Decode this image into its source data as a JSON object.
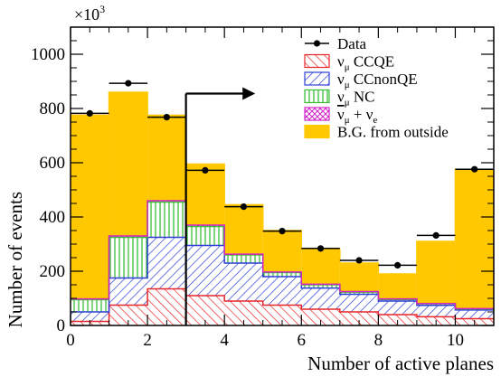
{
  "chart_data": {
    "type": "bar",
    "stacked": true,
    "x_bin_edges": [
      0,
      1,
      2,
      3,
      4,
      5,
      6,
      7,
      8,
      9,
      10,
      11
    ],
    "xlabel": "Number of active planes",
    "ylabel": "Number of events",
    "y_multiplier": "×10",
    "y_multiplier_exp": "3",
    "xlim": [
      0,
      11
    ],
    "ylim": [
      0,
      1100
    ],
    "x_ticks": [
      0,
      2,
      4,
      6,
      8,
      10
    ],
    "y_ticks": [
      0,
      200,
      400,
      600,
      800,
      1000
    ],
    "series": [
      {
        "key": "ccqe",
        "name": "CCQE",
        "color": "#e8262a",
        "pattern": "diagonal-hatch",
        "values": [
          15,
          75,
          135,
          110,
          90,
          75,
          60,
          50,
          40,
          32,
          25
        ]
      },
      {
        "key": "ccnonqe",
        "name": "CCnonQE",
        "color": "#2b3fd6",
        "pattern": "diagonal-hatch",
        "values": [
          35,
          100,
          190,
          185,
          140,
          105,
          78,
          65,
          50,
          42,
          32
        ]
      },
      {
        "key": "nc",
        "name": "NC",
        "color": "#3cbf35",
        "pattern": "vertical-lines",
        "values": [
          45,
          150,
          130,
          70,
          30,
          15,
          12,
          8,
          6,
          6,
          4
        ]
      },
      {
        "key": "anti",
        "name": "+",
        "color": "#d321c8",
        "pattern": "cross-hatch",
        "values": [
          3,
          5,
          5,
          5,
          3,
          2,
          2,
          2,
          2,
          1,
          1
        ]
      },
      {
        "key": "bg",
        "name": "B.G. from outside",
        "color": "#ffc800",
        "pattern": "solid",
        "values": [
          677,
          530,
          315,
          225,
          182,
          153,
          128,
          105,
          92,
          229,
          514
        ]
      }
    ],
    "data_points": {
      "name": "Data",
      "x": [
        0.5,
        1.5,
        2.5,
        3.5,
        4.5,
        5.5,
        6.5,
        7.5,
        8.5,
        9.5,
        10.5
      ],
      "y": [
        782,
        893,
        768,
        572,
        438,
        348,
        284,
        240,
        222,
        332,
        576
      ]
    },
    "cut": {
      "x": 3,
      "y_top": 855,
      "arrow_to_x": 4.8
    },
    "legend": {
      "placement": "top-right",
      "entries": [
        {
          "key": "data",
          "label": "Data"
        },
        {
          "key": "ccqe",
          "main": "ν",
          "sub": "μ",
          "label": "CCQE"
        },
        {
          "key": "ccnonqe",
          "main": "ν",
          "sub": "μ",
          "label": "CCnonQE"
        },
        {
          "key": "nc",
          "main": "ν",
          "sub": "μ",
          "label": "NC"
        },
        {
          "key": "anti",
          "main": "ν",
          "sub": "μ",
          "label": "+",
          "extra_main": "ν",
          "extra_sub": "e"
        },
        {
          "key": "bg",
          "label": "B.G. from outside"
        }
      ]
    }
  }
}
